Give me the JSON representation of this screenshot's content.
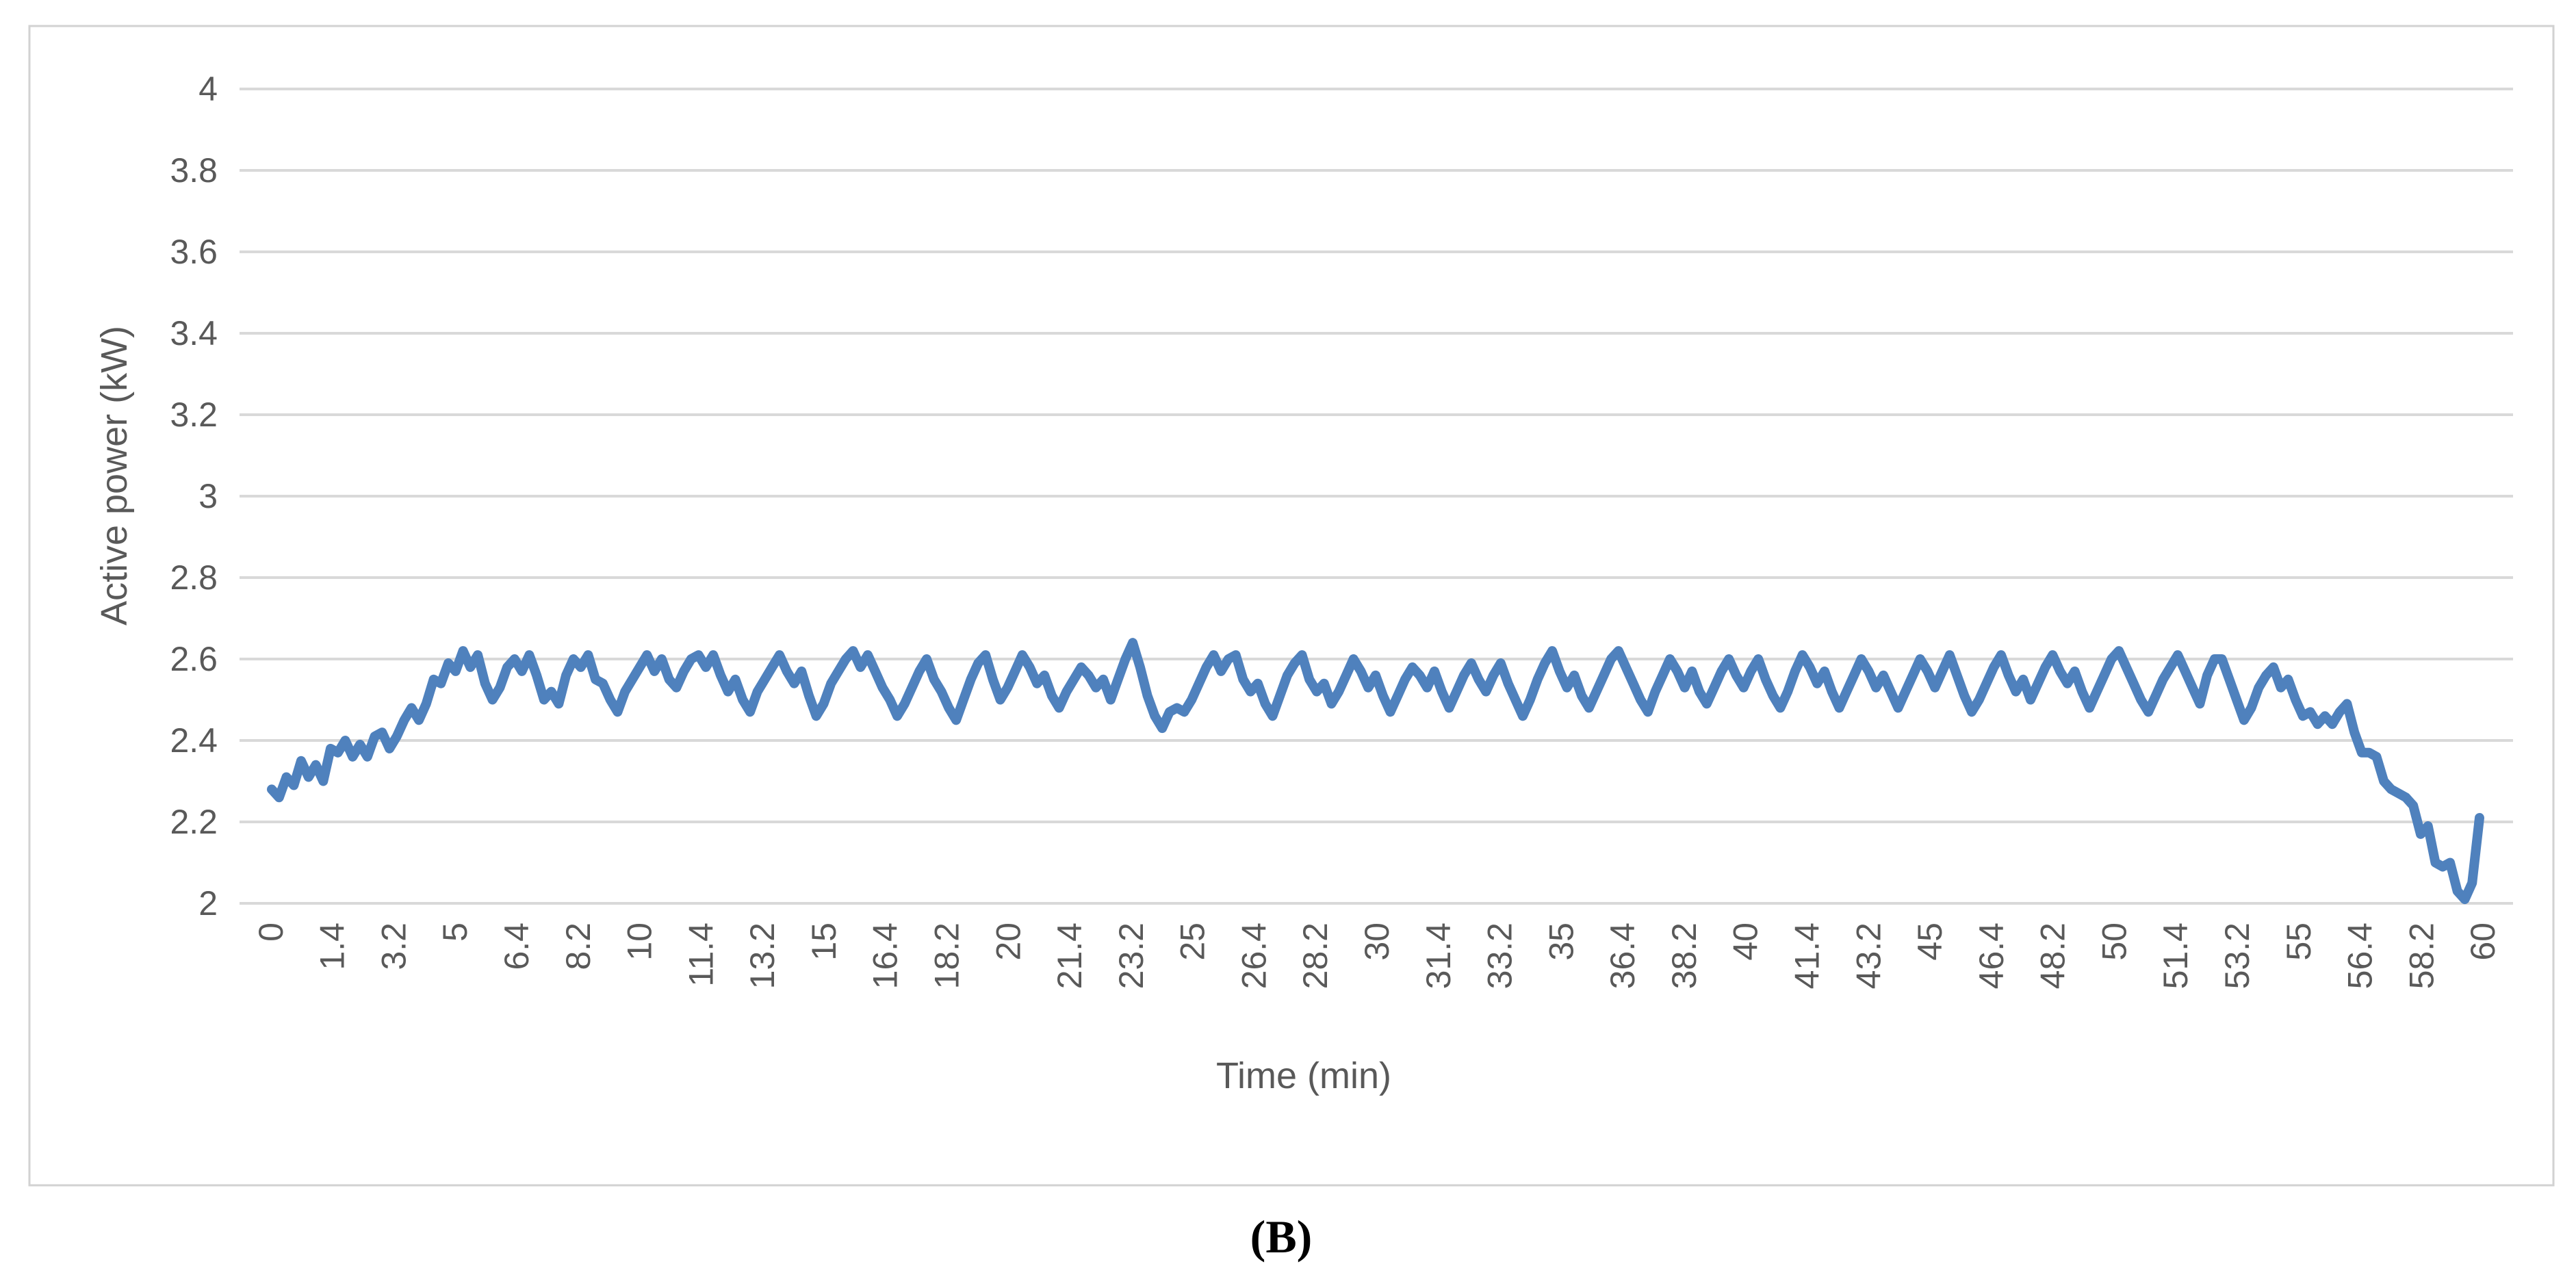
{
  "caption": "(B)",
  "colors": {
    "line": "#4f81bd",
    "grid": "#d9d9d9",
    "border": "#d2d2d2",
    "text": "#595959",
    "background": "#ffffff"
  },
  "chart_data": {
    "type": "line",
    "title": "",
    "xlabel": "Time (min)",
    "ylabel": "Active power (kW)",
    "xlim": [
      0,
      60
    ],
    "ylim": [
      2,
      4
    ],
    "grid": "horizontal",
    "legend": "none",
    "y_tick_labels": [
      "2",
      "2.2",
      "2.4",
      "2.6",
      "2.8",
      "3",
      "3.2",
      "3.4",
      "3.6",
      "3.8",
      "4"
    ],
    "y_tick_values": [
      2,
      2.2,
      2.4,
      2.6,
      2.8,
      3,
      3.2,
      3.4,
      3.6,
      3.8,
      4
    ],
    "x_tick_labels": [
      "0",
      "1.4",
      "3.2",
      "5",
      "6.4",
      "8.2",
      "10",
      "11.4",
      "13.2",
      "15",
      "16.4",
      "18.2",
      "20",
      "21.4",
      "23.2",
      "25",
      "26.4",
      "28.2",
      "30",
      "31.4",
      "33.2",
      "35",
      "36.4",
      "38.2",
      "40",
      "41.4",
      "43.2",
      "45",
      "46.4",
      "48.2",
      "50",
      "51.4",
      "53.2",
      "55",
      "56.4",
      "58.2",
      "60"
    ],
    "x_start": 0,
    "x_step": 0.2,
    "series": [
      {
        "name": "Active power",
        "values": [
          2.28,
          2.26,
          2.31,
          2.29,
          2.35,
          2.31,
          2.34,
          2.3,
          2.38,
          2.37,
          2.4,
          2.36,
          2.39,
          2.36,
          2.41,
          2.42,
          2.38,
          2.41,
          2.45,
          2.48,
          2.45,
          2.49,
          2.55,
          2.54,
          2.59,
          2.57,
          2.62,
          2.58,
          2.61,
          2.54,
          2.5,
          2.53,
          2.58,
          2.6,
          2.57,
          2.61,
          2.56,
          2.5,
          2.52,
          2.49,
          2.56,
          2.6,
          2.58,
          2.61,
          2.55,
          2.54,
          2.5,
          2.47,
          2.52,
          2.55,
          2.58,
          2.61,
          2.57,
          2.6,
          2.55,
          2.53,
          2.57,
          2.6,
          2.61,
          2.58,
          2.61,
          2.56,
          2.52,
          2.55,
          2.5,
          2.47,
          2.52,
          2.55,
          2.58,
          2.61,
          2.57,
          2.54,
          2.57,
          2.51,
          2.46,
          2.49,
          2.54,
          2.57,
          2.6,
          2.62,
          2.58,
          2.61,
          2.57,
          2.53,
          2.5,
          2.46,
          2.49,
          2.53,
          2.57,
          2.6,
          2.55,
          2.52,
          2.48,
          2.45,
          2.5,
          2.55,
          2.59,
          2.61,
          2.55,
          2.5,
          2.53,
          2.57,
          2.61,
          2.58,
          2.54,
          2.56,
          2.51,
          2.48,
          2.52,
          2.55,
          2.58,
          2.56,
          2.53,
          2.55,
          2.5,
          2.55,
          2.6,
          2.64,
          2.58,
          2.51,
          2.46,
          2.43,
          2.47,
          2.48,
          2.47,
          2.5,
          2.54,
          2.58,
          2.61,
          2.57,
          2.6,
          2.61,
          2.55,
          2.52,
          2.54,
          2.49,
          2.46,
          2.51,
          2.56,
          2.59,
          2.61,
          2.55,
          2.52,
          2.54,
          2.49,
          2.52,
          2.56,
          2.6,
          2.57,
          2.53,
          2.56,
          2.51,
          2.47,
          2.51,
          2.55,
          2.58,
          2.56,
          2.53,
          2.57,
          2.52,
          2.48,
          2.52,
          2.56,
          2.59,
          2.55,
          2.52,
          2.56,
          2.59,
          2.54,
          2.5,
          2.46,
          2.5,
          2.55,
          2.59,
          2.62,
          2.57,
          2.53,
          2.56,
          2.51,
          2.48,
          2.52,
          2.56,
          2.6,
          2.62,
          2.58,
          2.54,
          2.5,
          2.47,
          2.52,
          2.56,
          2.6,
          2.57,
          2.53,
          2.57,
          2.52,
          2.49,
          2.53,
          2.57,
          2.6,
          2.56,
          2.53,
          2.57,
          2.6,
          2.55,
          2.51,
          2.48,
          2.52,
          2.57,
          2.61,
          2.58,
          2.54,
          2.57,
          2.52,
          2.48,
          2.52,
          2.56,
          2.6,
          2.57,
          2.53,
          2.56,
          2.52,
          2.48,
          2.52,
          2.56,
          2.6,
          2.57,
          2.53,
          2.57,
          2.61,
          2.56,
          2.51,
          2.47,
          2.5,
          2.54,
          2.58,
          2.61,
          2.56,
          2.52,
          2.55,
          2.5,
          2.54,
          2.58,
          2.61,
          2.57,
          2.54,
          2.57,
          2.52,
          2.48,
          2.52,
          2.56,
          2.6,
          2.62,
          2.58,
          2.54,
          2.5,
          2.47,
          2.51,
          2.55,
          2.58,
          2.61,
          2.57,
          2.53,
          2.49,
          2.56,
          2.6,
          2.6,
          2.55,
          2.5,
          2.45,
          2.48,
          2.53,
          2.56,
          2.58,
          2.53,
          2.55,
          2.5,
          2.46,
          2.47,
          2.44,
          2.46,
          2.44,
          2.47,
          2.49,
          2.42,
          2.37,
          2.37,
          2.36,
          2.3,
          2.28,
          2.27,
          2.26,
          2.24,
          2.17,
          2.19,
          2.1,
          2.09,
          2.1,
          2.03,
          2.01,
          2.05,
          2.21
        ]
      }
    ]
  }
}
